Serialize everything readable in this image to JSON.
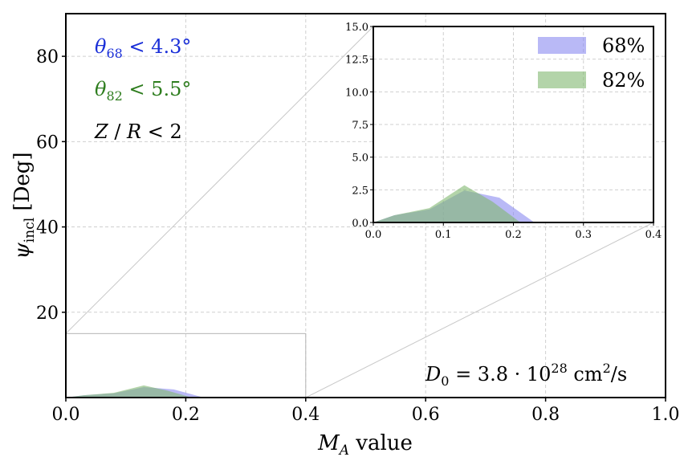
{
  "chart_data": {
    "type": "area",
    "main": {
      "xlabel": "M_A value",
      "ylabel": "ψ_incl [Deg]",
      "xlim": [
        0.0,
        1.0
      ],
      "ylim": [
        0,
        90
      ],
      "xticks": [
        "0.0",
        "0.2",
        "0.4",
        "0.6",
        "0.8",
        "1.0"
      ],
      "yticks": [
        "20",
        "40",
        "60",
        "80"
      ],
      "grid": true,
      "zoom_box": {
        "x": [
          0.0,
          0.4
        ],
        "y": [
          0.0,
          15.0
        ]
      }
    },
    "inset": {
      "xlim": [
        0.0,
        0.4
      ],
      "ylim": [
        0.0,
        15.0
      ],
      "xticks": [
        "0.0",
        "0.1",
        "0.2",
        "0.3",
        "0.4"
      ],
      "yticks": [
        "0.0",
        "2.5",
        "5.0",
        "7.5",
        "10.0",
        "12.5",
        "15.0"
      ],
      "grid": true,
      "legend_position": "top-right"
    },
    "series": [
      {
        "name": "68%",
        "color": "#8a8af0",
        "x": [
          0.0,
          0.03,
          0.08,
          0.13,
          0.18,
          0.23
        ],
        "y": [
          0.0,
          0.55,
          1.0,
          2.45,
          1.9,
          0.0
        ]
      },
      {
        "name": "82%",
        "color": "#80b870",
        "x": [
          0.0,
          0.03,
          0.08,
          0.13,
          0.17,
          0.21
        ],
        "y": [
          0.0,
          0.55,
          1.1,
          2.85,
          1.6,
          0.0
        ]
      }
    ],
    "annotations": {
      "theta68": {
        "text": "θ₆₈ < 4.3°",
        "color": "#1a2fd8"
      },
      "theta82": {
        "text": "θ₈₂ < 5.5°",
        "color": "#2e7d1e"
      },
      "zr": {
        "text": "Z / R < 2",
        "color": "#000000"
      },
      "d0": {
        "text": "D₀ = 3.8 · 10²⁸ cm²/s",
        "color": "#000000"
      }
    }
  }
}
